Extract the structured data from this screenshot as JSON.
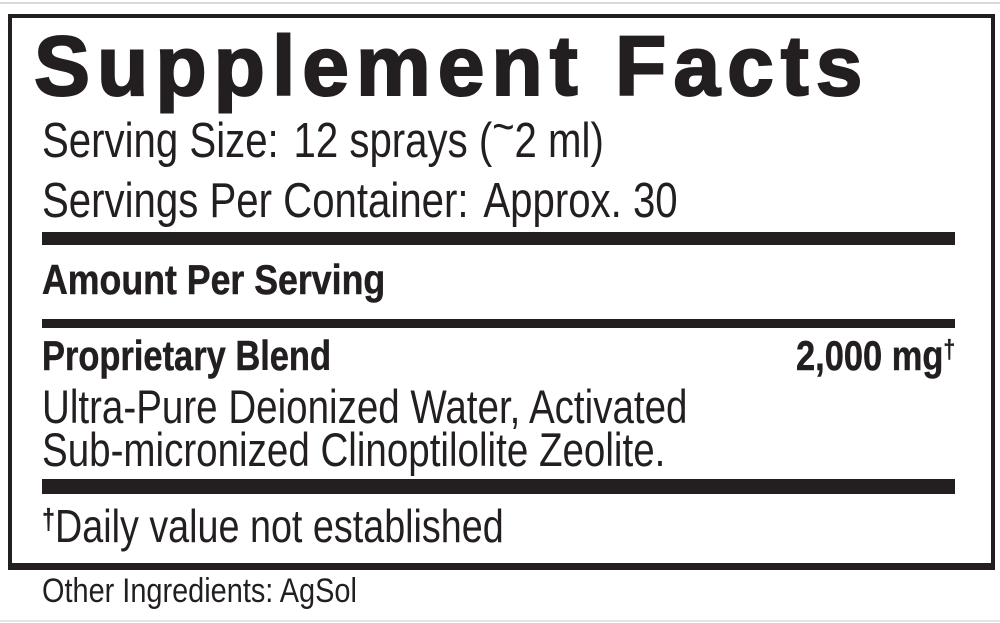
{
  "colors": {
    "ink": "#231f20",
    "background": "#ffffff",
    "edge_line": "#d9d9d9"
  },
  "panel": {
    "title": "Supplement Facts",
    "serving_size_label": "Serving Size:",
    "serving_size_value_pre": "12 sprays (",
    "serving_size_tilde": "~",
    "serving_size_value_post": "2 ml)",
    "servings_per_container_label": "Servings Per Container:",
    "servings_per_container_value": "Approx. 30",
    "amount_per_serving_header": "Amount Per Serving",
    "blend_name": "Proprietary Blend",
    "blend_amount": "2,000 mg",
    "blend_amount_dagger": "†",
    "blend_ingredients_line1": "Ultra-Pure Deionized Water, Activated",
    "blend_ingredients_line2": "Sub-micronized Clinoptilolite Zeolite.",
    "footnote_dagger": "†",
    "footnote_text": "Daily value not established"
  },
  "other_ingredients": {
    "label": "Other Ingredients:",
    "value": "AgSol"
  }
}
